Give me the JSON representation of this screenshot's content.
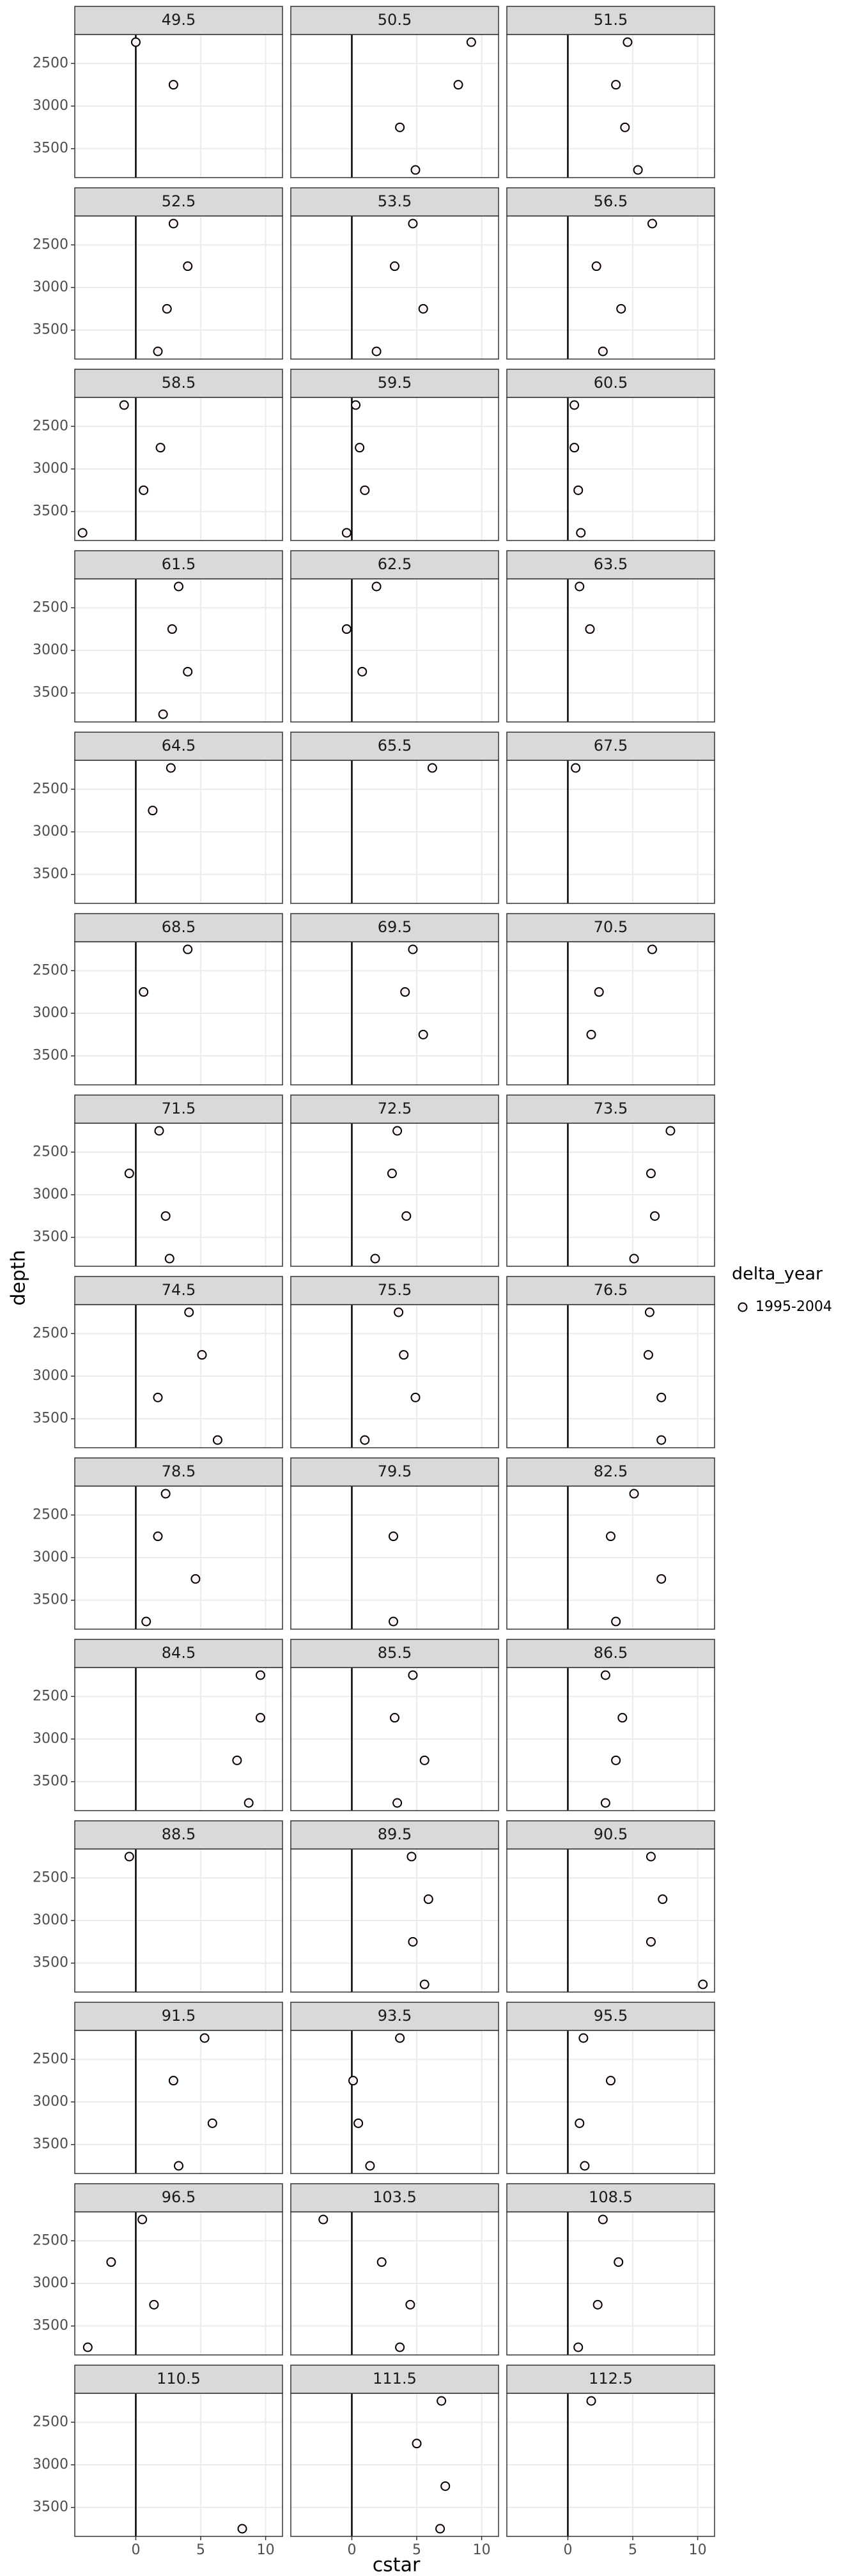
{
  "chart_data": {
    "type": "scatter",
    "xlabel": "cstar",
    "ylabel": "depth",
    "xlim": [
      -4.7,
      11.3
    ],
    "ylim": [
      3840,
      2160
    ],
    "xticks": [
      0,
      5,
      10
    ],
    "yticks": [
      2500,
      3000,
      3500
    ],
    "vline": 0,
    "grid": true,
    "color": "#000000",
    "legend": {
      "title": "delta_year",
      "entries": [
        "1995-2004"
      ],
      "position": "right"
    },
    "facets": [
      {
        "title": "49.5",
        "x": [
          0.0,
          2.9
        ],
        "y": [
          2250,
          2750
        ]
      },
      {
        "title": "50.5",
        "x": [
          9.2,
          8.2,
          3.7,
          4.9
        ],
        "y": [
          2250,
          2750,
          3250,
          3750
        ]
      },
      {
        "title": "51.5",
        "x": [
          4.6,
          3.7,
          4.4,
          5.4
        ],
        "y": [
          2250,
          2750,
          3250,
          3750
        ]
      },
      {
        "title": "52.5",
        "x": [
          2.9,
          4.0,
          2.4,
          1.7
        ],
        "y": [
          2250,
          2750,
          3250,
          3750
        ]
      },
      {
        "title": "53.5",
        "x": [
          4.7,
          3.3,
          5.5,
          1.9
        ],
        "y": [
          2250,
          2750,
          3250,
          3750
        ]
      },
      {
        "title": "56.5",
        "x": [
          6.5,
          2.2,
          4.1,
          2.7
        ],
        "y": [
          2250,
          2750,
          3250,
          3750
        ]
      },
      {
        "title": "58.5",
        "x": [
          -0.9,
          1.9,
          0.6,
          -4.1
        ],
        "y": [
          2250,
          2750,
          3250,
          3750
        ]
      },
      {
        "title": "59.5",
        "x": [
          0.3,
          0.6,
          1.0,
          -0.4
        ],
        "y": [
          2250,
          2750,
          3250,
          3750
        ]
      },
      {
        "title": "60.5",
        "x": [
          0.5,
          0.5,
          0.8,
          1.0
        ],
        "y": [
          2250,
          2750,
          3250,
          3750
        ]
      },
      {
        "title": "61.5",
        "x": [
          3.3,
          2.8,
          4.0,
          2.1
        ],
        "y": [
          2250,
          2750,
          3250,
          3750
        ]
      },
      {
        "title": "62.5",
        "x": [
          1.9,
          -0.4,
          0.8
        ],
        "y": [
          2250,
          2750,
          3250
        ]
      },
      {
        "title": "63.5",
        "x": [
          0.9,
          1.7
        ],
        "y": [
          2250,
          2750
        ]
      },
      {
        "title": "64.5",
        "x": [
          2.7,
          1.3
        ],
        "y": [
          2250,
          2750
        ]
      },
      {
        "title": "65.5",
        "x": [
          6.2
        ],
        "y": [
          2250
        ]
      },
      {
        "title": "67.5",
        "x": [
          0.6
        ],
        "y": [
          2250
        ]
      },
      {
        "title": "68.5",
        "x": [
          4.0,
          0.6
        ],
        "y": [
          2250,
          2750
        ]
      },
      {
        "title": "69.5",
        "x": [
          4.7,
          4.1,
          5.5
        ],
        "y": [
          2250,
          2750,
          3250
        ]
      },
      {
        "title": "70.5",
        "x": [
          6.5,
          2.4,
          1.8
        ],
        "y": [
          2250,
          2750,
          3250
        ]
      },
      {
        "title": "71.5",
        "x": [
          1.8,
          -0.5,
          2.3,
          2.6
        ],
        "y": [
          2250,
          2750,
          3250,
          3750
        ]
      },
      {
        "title": "72.5",
        "x": [
          3.5,
          3.1,
          4.2,
          1.8
        ],
        "y": [
          2250,
          2750,
          3250,
          3750
        ]
      },
      {
        "title": "73.5",
        "x": [
          7.9,
          6.4,
          6.7,
          5.1
        ],
        "y": [
          2250,
          2750,
          3250,
          3750
        ]
      },
      {
        "title": "74.5",
        "x": [
          4.1,
          5.1,
          1.7,
          6.3
        ],
        "y": [
          2250,
          2750,
          3250,
          3750
        ]
      },
      {
        "title": "75.5",
        "x": [
          3.6,
          4.0,
          4.9,
          1.0
        ],
        "y": [
          2250,
          2750,
          3250,
          3750
        ]
      },
      {
        "title": "76.5",
        "x": [
          6.3,
          6.2,
          7.2,
          7.2
        ],
        "y": [
          2250,
          2750,
          3250,
          3750
        ]
      },
      {
        "title": "78.5",
        "x": [
          2.3,
          1.7,
          4.6,
          0.8
        ],
        "y": [
          2250,
          2750,
          3250,
          3750
        ]
      },
      {
        "title": "79.5",
        "x": [
          3.2,
          3.2
        ],
        "y": [
          2750,
          3750
        ]
      },
      {
        "title": "82.5",
        "x": [
          5.1,
          3.3,
          7.2,
          3.7
        ],
        "y": [
          2250,
          2750,
          3250,
          3750
        ]
      },
      {
        "title": "84.5",
        "x": [
          9.6,
          9.6,
          7.8,
          8.7
        ],
        "y": [
          2250,
          2750,
          3250,
          3750
        ]
      },
      {
        "title": "85.5",
        "x": [
          4.7,
          3.3,
          5.6,
          3.5
        ],
        "y": [
          2250,
          2750,
          3250,
          3750
        ]
      },
      {
        "title": "86.5",
        "x": [
          2.9,
          4.2,
          3.7,
          2.9
        ],
        "y": [
          2250,
          2750,
          3250,
          3750
        ]
      },
      {
        "title": "88.5",
        "x": [
          -0.5
        ],
        "y": [
          2250
        ]
      },
      {
        "title": "89.5",
        "x": [
          4.6,
          5.9,
          4.7,
          5.6
        ],
        "y": [
          2250,
          2750,
          3250,
          3750
        ]
      },
      {
        "title": "90.5",
        "x": [
          6.4,
          7.3,
          6.4,
          10.4
        ],
        "y": [
          2250,
          2750,
          3250,
          3750
        ]
      },
      {
        "title": "91.5",
        "x": [
          5.3,
          2.9,
          5.9,
          3.3
        ],
        "y": [
          2250,
          2750,
          3250,
          3750
        ]
      },
      {
        "title": "93.5",
        "x": [
          3.7,
          0.1,
          0.5,
          1.4
        ],
        "y": [
          2250,
          2750,
          3250,
          3750
        ]
      },
      {
        "title": "95.5",
        "x": [
          1.2,
          3.3,
          0.9,
          1.3
        ],
        "y": [
          2250,
          2750,
          3250,
          3750
        ]
      },
      {
        "title": "96.5",
        "x": [
          0.5,
          -1.9,
          1.4,
          -3.7
        ],
        "y": [
          2250,
          2750,
          3250,
          3750
        ]
      },
      {
        "title": "103.5",
        "x": [
          -2.2,
          2.3,
          4.5,
          3.7
        ],
        "y": [
          2250,
          2750,
          3250,
          3750
        ]
      },
      {
        "title": "108.5",
        "x": [
          2.7,
          3.9,
          2.3,
          0.8
        ],
        "y": [
          2250,
          2750,
          3250,
          3750
        ]
      },
      {
        "title": "110.5",
        "x": [
          8.2
        ],
        "y": [
          3750
        ]
      },
      {
        "title": "111.5",
        "x": [
          6.9,
          5.0,
          7.2,
          6.8
        ],
        "y": [
          2250,
          2750,
          3250,
          3750
        ]
      },
      {
        "title": "112.5",
        "x": [
          1.8
        ],
        "y": [
          2250
        ]
      }
    ]
  }
}
